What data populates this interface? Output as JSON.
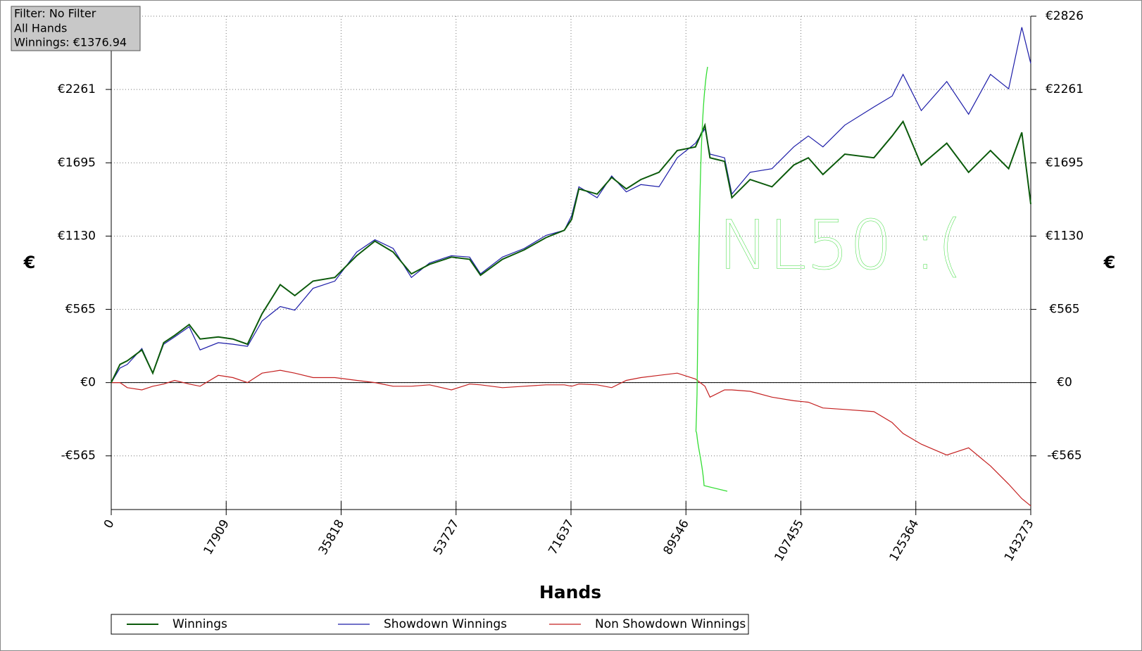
{
  "chart_data": {
    "type": "line",
    "info": [
      "Filter: No Filter",
      "All Hands",
      "Winnings: €1376.94"
    ],
    "xlabel": "Hands",
    "ylabel": "€",
    "annotation": "NL50 :(",
    "xlim": [
      0,
      143273
    ],
    "xticks": [
      0,
      17909,
      35818,
      53727,
      71637,
      89546,
      107455,
      125364,
      143273
    ],
    "ylim": [
      -979,
      2826
    ],
    "yticks": [
      {
        "value": -565,
        "label": "-€565"
      },
      {
        "value": 0,
        "label": "€0"
      },
      {
        "value": 565,
        "label": "€565"
      },
      {
        "value": 1130,
        "label": "€1130"
      },
      {
        "value": 1695,
        "label": "€1695"
      },
      {
        "value": 2261,
        "label": "€2261"
      },
      {
        "value": 2826,
        "label": "€2826"
      }
    ],
    "grid": true,
    "x": [
      0,
      1362,
      2497,
      4767,
      6470,
      8172,
      9875,
      12145,
      13847,
      16685,
      18955,
      21225,
      23495,
      26332,
      28602,
      31440,
      34845,
      38250,
      41087,
      43925,
      46762,
      49600,
      53005,
      55842,
      57545,
      60950,
      64355,
      67760,
      70597,
      71732,
      72867,
      75705,
      77975,
      80245,
      82515,
      85352,
      88190,
      91027,
      92503,
      93297,
      95567,
      96702,
      99540,
      102945,
      106350,
      108620,
      110890,
      114295,
      118835,
      121672,
      123375,
      126212,
      130185,
      133590,
      136995,
      139832,
      141875,
      143273
    ],
    "series": [
      {
        "name": "Winnings",
        "color": "#0b5a0b",
        "values": [
          0,
          140,
          168,
          252,
          73,
          308,
          364,
          448,
          336,
          352,
          336,
          296,
          531,
          755,
          671,
          783,
          811,
          979,
          1091,
          1007,
          839,
          912,
          968,
          951,
          828,
          951,
          1024,
          1119,
          1175,
          1259,
          1494,
          1454,
          1583,
          1494,
          1566,
          1622,
          1790,
          1818,
          1986,
          1734,
          1706,
          1426,
          1566,
          1510,
          1678,
          1734,
          1605,
          1762,
          1734,
          1902,
          2014,
          1678,
          1846,
          1622,
          1790,
          1650,
          1930,
          1377
        ]
      },
      {
        "name": "Showdown Winnings",
        "color": "#1c1ca8",
        "values": [
          0,
          112,
          140,
          263,
          73,
          296,
          352,
          431,
          252,
          308,
          296,
          280,
          475,
          587,
          559,
          727,
          783,
          1007,
          1102,
          1035,
          811,
          923,
          979,
          968,
          839,
          968,
          1035,
          1136,
          1175,
          1287,
          1510,
          1426,
          1594,
          1471,
          1527,
          1510,
          1734,
          1846,
          1958,
          1762,
          1734,
          1454,
          1622,
          1650,
          1818,
          1902,
          1818,
          1986,
          2126,
          2210,
          2377,
          2098,
          2322,
          2070,
          2377,
          2266,
          2741,
          2461
        ]
      },
      {
        "name": "Non Showdown Winnings",
        "color": "#c42020",
        "values": [
          0,
          0,
          -39,
          -56,
          -28,
          -11,
          17,
          -11,
          -28,
          56,
          39,
          0,
          73,
          95,
          73,
          39,
          39,
          17,
          0,
          -28,
          -28,
          -17,
          -56,
          -11,
          -17,
          -39,
          -28,
          -17,
          -17,
          -28,
          -11,
          -17,
          -39,
          17,
          39,
          56,
          73,
          28,
          -28,
          -112,
          -56,
          -56,
          -67,
          -112,
          -140,
          -151,
          -196,
          -207,
          -224,
          -308,
          -392,
          -475,
          -559,
          -503,
          -643,
          -783,
          -895,
          -951
        ]
      }
    ]
  }
}
